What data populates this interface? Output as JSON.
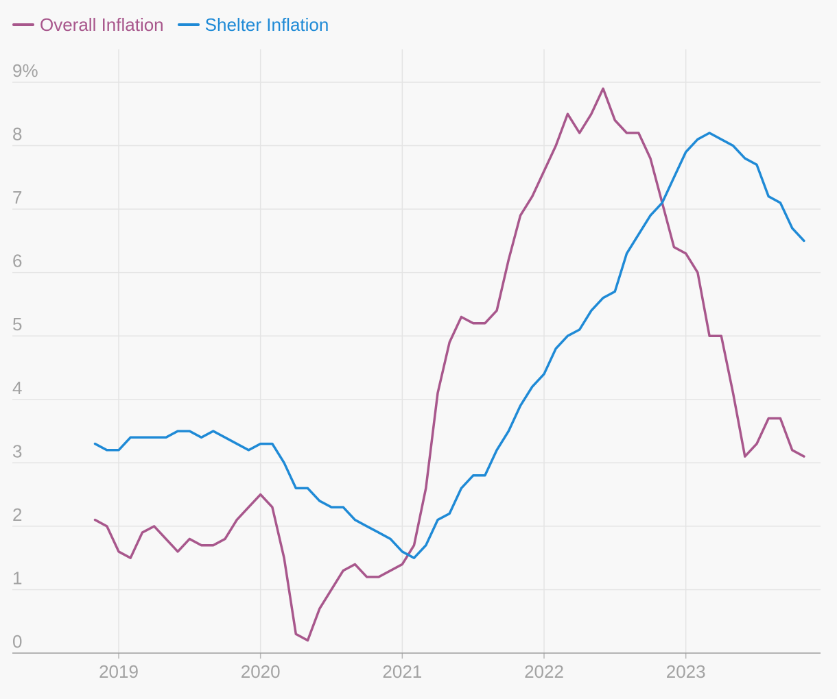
{
  "chart_data": {
    "type": "line",
    "title": "",
    "xlabel": "",
    "ylabel": "",
    "ylim": [
      0,
      9
    ],
    "y_ticks": [
      {
        "value": 0,
        "label": "0"
      },
      {
        "value": 1,
        "label": "1"
      },
      {
        "value": 2,
        "label": "2"
      },
      {
        "value": 3,
        "label": "3"
      },
      {
        "value": 4,
        "label": "4"
      },
      {
        "value": 5,
        "label": "5"
      },
      {
        "value": 6,
        "label": "6"
      },
      {
        "value": 7,
        "label": "7"
      },
      {
        "value": 8,
        "label": "8"
      },
      {
        "value": 9,
        "label": "9%"
      }
    ],
    "xlim": [
      2018.25,
      2023.95
    ],
    "x_ticks": [
      {
        "value": 2019,
        "label": "2019"
      },
      {
        "value": 2020,
        "label": "2020"
      },
      {
        "value": 2021,
        "label": "2021"
      },
      {
        "value": 2022,
        "label": "2022"
      },
      {
        "value": 2023,
        "label": "2023"
      }
    ],
    "grid": true,
    "legend_position": "top-left",
    "x_start": 2018.8333,
    "x_step_months": 1,
    "series": [
      {
        "name": "Overall Inflation",
        "color": "#a8578c",
        "values": [
          2.1,
          2.0,
          1.6,
          1.5,
          1.9,
          2.0,
          1.8,
          1.6,
          1.8,
          1.7,
          1.7,
          1.8,
          2.1,
          2.3,
          2.5,
          2.3,
          1.5,
          0.3,
          0.2,
          0.7,
          1.0,
          1.3,
          1.4,
          1.2,
          1.2,
          1.3,
          1.4,
          1.7,
          2.6,
          4.1,
          4.9,
          5.3,
          5.2,
          5.2,
          5.4,
          6.2,
          6.9,
          7.2,
          7.6,
          8.0,
          8.5,
          8.2,
          8.5,
          8.9,
          8.4,
          8.2,
          8.2,
          7.8,
          7.1,
          6.4,
          6.3,
          6.0,
          5.0,
          5.0,
          4.1,
          3.1,
          3.3,
          3.7,
          3.7,
          3.2,
          3.1
        ]
      },
      {
        "name": "Shelter Inflation",
        "color": "#1f8ad6",
        "values": [
          3.3,
          3.2,
          3.2,
          3.4,
          3.4,
          3.4,
          3.4,
          3.5,
          3.5,
          3.4,
          3.5,
          3.4,
          3.3,
          3.2,
          3.3,
          3.3,
          3.0,
          2.6,
          2.6,
          2.4,
          2.3,
          2.3,
          2.1,
          2.0,
          1.9,
          1.8,
          1.6,
          1.5,
          1.7,
          2.1,
          2.2,
          2.6,
          2.8,
          2.8,
          3.2,
          3.5,
          3.9,
          4.2,
          4.4,
          4.8,
          5.0,
          5.1,
          5.4,
          5.6,
          5.7,
          6.3,
          6.6,
          6.9,
          7.1,
          7.5,
          7.9,
          8.1,
          8.2,
          8.1,
          8.0,
          7.8,
          7.7,
          7.2,
          7.1,
          6.7,
          6.5
        ]
      }
    ]
  }
}
